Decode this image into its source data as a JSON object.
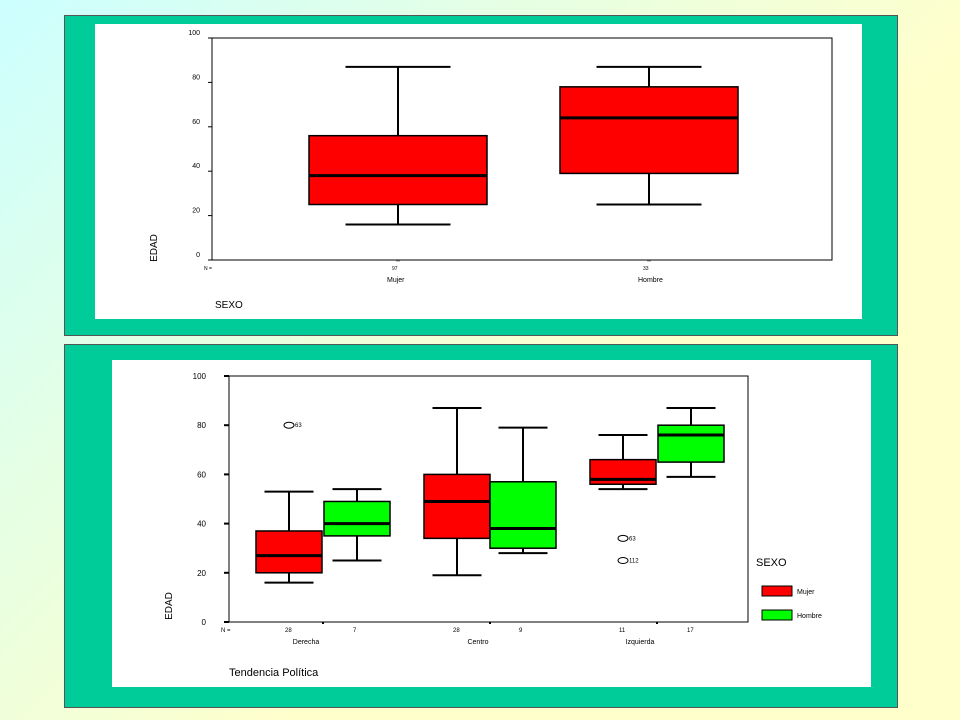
{
  "colors": {
    "panel": "#00cc99",
    "mujer": "#ff0000",
    "hombre": "#00ff00",
    "line": "#000000"
  },
  "chart_data": [
    {
      "type": "boxplot",
      "ylabel": "EDAD",
      "xlabel": "SEXO",
      "ylim": [
        0,
        100
      ],
      "yticks": [
        "0",
        "20",
        "40",
        "60",
        "80",
        "100"
      ],
      "n_label": "N =",
      "categories": [
        "Mujer",
        "Hombre"
      ],
      "n": [
        "97",
        "33"
      ],
      "boxes": [
        {
          "category": "Mujer",
          "min": 16,
          "q1": 25,
          "median": 38,
          "q3": 56,
          "max": 87
        },
        {
          "category": "Hombre",
          "min": 25,
          "q1": 39,
          "median": 64,
          "q3": 78,
          "max": 87
        }
      ]
    },
    {
      "type": "boxplot",
      "ylabel": "EDAD",
      "xlabel": "Tendencia Política",
      "ylim": [
        0,
        100
      ],
      "yticks": [
        "0",
        "20",
        "40",
        "60",
        "80",
        "100"
      ],
      "n_label": "N =",
      "categories": [
        "Derecha",
        "Centro",
        "Izquierda"
      ],
      "legend": {
        "title": "SEXO",
        "entries": [
          "Mujer",
          "Hombre"
        ],
        "position": "right"
      },
      "series": [
        {
          "name": "Mujer",
          "n": [
            "28",
            "28",
            "11"
          ],
          "boxes": [
            {
              "category": "Derecha",
              "min": 16,
              "q1": 20,
              "median": 27,
              "q3": 37,
              "max": 53
            },
            {
              "category": "Centro",
              "min": 19,
              "q1": 34,
              "median": 49,
              "q3": 60,
              "max": 87
            },
            {
              "category": "Izquierda",
              "min": 54,
              "q1": 56,
              "median": 58,
              "q3": 66,
              "max": 76
            }
          ]
        },
        {
          "name": "Hombre",
          "n": [
            "7",
            "9",
            "17"
          ],
          "boxes": [
            {
              "category": "Derecha",
              "min": 25,
              "q1": 35,
              "median": 40,
              "q3": 49,
              "max": 54
            },
            {
              "category": "Centro",
              "min": 28,
              "q1": 30,
              "median": 38,
              "q3": 57,
              "max": 79
            },
            {
              "category": "Izquierda",
              "min": 59,
              "q1": 65,
              "median": 76,
              "q3": 80,
              "max": 87
            }
          ]
        }
      ],
      "outliers": [
        {
          "category": "Derecha",
          "series": "Mujer",
          "value": 80,
          "label": "63"
        },
        {
          "category": "Izquierda",
          "series": "Mujer",
          "value": 34,
          "label": "63"
        },
        {
          "category": "Izquierda",
          "series": "Mujer",
          "value": 25,
          "label": "112"
        }
      ]
    }
  ]
}
